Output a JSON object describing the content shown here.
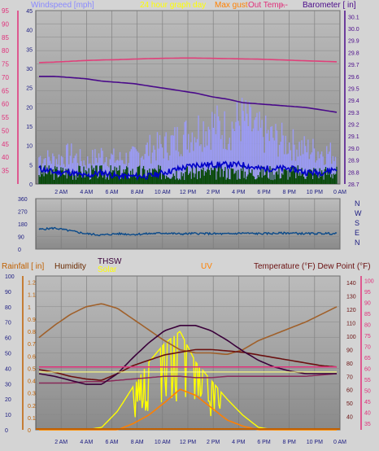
{
  "colors": {
    "panel_bg_top": "#b8b8b8",
    "panel_bg_bottom": "#8e8e8e",
    "frame_bg": "#d4d4d4",
    "windspeed": "#7b7bf0",
    "gust": "#9c9cff",
    "avg_wind": "#0000c8",
    "dark_green": "#0a4a0a",
    "barometer": "#4a0a8a",
    "outside_temp": "#e0407a",
    "wind_dir": "#0a4a8a",
    "humidity": "#a0602a",
    "temperature": "#6a1010",
    "dew_point": "#8a2a5a",
    "thsw": "#3a003a",
    "solar": "#ffff00",
    "uv": "#ff8000",
    "rain": "#c06000",
    "inside_temp": "#e0307a",
    "pink_axis": "#e0307a",
    "left_axis": "#c06000"
  },
  "labels": {
    "windspeed": "Windspeed [mph]",
    "title": "24 hour graph day",
    "maxgust_label": "Max gust",
    "outside_temp": "Out Temp.",
    "dashes": "---",
    "barometer": "Barometer [ in]",
    "rainfall": "Rainfall [ in]",
    "humidity": "Humidity",
    "thsw": "THSW",
    "solar": "Solar",
    "uv": "UV",
    "temperature": "Temperature (°F) Dew Point (°F)"
  },
  "chart_data": [
    {
      "type": "line",
      "name": "wind-barometer",
      "x_ticks": [
        "2 AM",
        "4 AM",
        "6 AM",
        "8 AM",
        "10 AM",
        "12 PM",
        "2 PM",
        "4 PM",
        "6 PM",
        "8 PM",
        "10 PM",
        "0 AM"
      ],
      "left_axis": {
        "label": "Windspeed [mph]",
        "ticks": [
          35,
          40,
          45,
          50,
          55,
          60,
          65,
          70,
          75,
          80,
          85,
          90,
          95
        ],
        "ylim": [
          30,
          95
        ]
      },
      "left_inner_axis": {
        "ticks": [
          0,
          5,
          10,
          15,
          20,
          25,
          30,
          35,
          40,
          45
        ],
        "ylim": [
          0,
          45
        ]
      },
      "right_axis": {
        "label": "Barometer [ in]",
        "ticks": [
          28.7,
          28.8,
          28.9,
          29.0,
          29.1,
          29.2,
          29.3,
          29.4,
          29.5,
          29.6,
          29.7,
          29.8,
          29.9,
          30.0,
          30.1
        ],
        "ylim": [
          28.7,
          30.15
        ]
      },
      "barometer": [
        29.6,
        29.6,
        29.59,
        29.58,
        29.56,
        29.55,
        29.54,
        29.52,
        29.5,
        29.48,
        29.46,
        29.43,
        29.41,
        29.38,
        29.37,
        29.36,
        29.35,
        29.34,
        29.32,
        29.3
      ],
      "outside_temp": [
        75.5,
        75.7,
        76,
        76.3,
        76.5,
        76.6,
        76.8,
        77,
        77.1,
        77.2,
        77.2,
        77.1,
        77,
        76.9,
        76.8,
        76.6,
        76.4,
        76.2,
        76,
        75.8
      ],
      "avg_wind": [
        4,
        3,
        3,
        2,
        3,
        2,
        2,
        2,
        3,
        4,
        5,
        5,
        5,
        5,
        4,
        4,
        4,
        3,
        3,
        4
      ],
      "gust_peak": [
        10,
        9,
        11,
        8,
        11,
        9,
        10,
        13,
        14,
        17,
        20,
        22,
        20,
        24,
        19,
        17,
        15,
        13,
        12,
        11
      ]
    },
    {
      "type": "line",
      "name": "wind-direction",
      "left_axis": {
        "ticks": [
          0,
          90,
          180,
          270,
          360
        ],
        "ylim": [
          0,
          360
        ]
      },
      "right_labels": [
        "N",
        "W",
        "S",
        "E",
        "N"
      ],
      "values": [
        140,
        150,
        130,
        110,
        100,
        110,
        105,
        110,
        115,
        108,
        112,
        110,
        108,
        114,
        110,
        112,
        115,
        110,
        112,
        110
      ]
    },
    {
      "type": "line",
      "name": "temperature-solar",
      "x_ticks": [
        "2 AM",
        "4 AM",
        "6 AM",
        "8 AM",
        "10 AM",
        "12 PM",
        "2 PM",
        "4 PM",
        "6 PM",
        "8 PM",
        "10 PM",
        "0 AM"
      ],
      "left_axis": {
        "label": "Rainfall [ in]",
        "ticks": [
          0,
          0.1,
          0.2,
          0.3,
          0.4,
          0.5,
          0.6,
          0.7,
          0.8,
          0.9,
          1,
          1.1,
          1.2
        ],
        "ylim": [
          0,
          1.25
        ]
      },
      "humidity_axis": {
        "label": "Humidity",
        "ticks": [
          0,
          10,
          20,
          30,
          40,
          50,
          60,
          70,
          80,
          90,
          100
        ],
        "ylim": [
          0,
          100
        ]
      },
      "right_axis": {
        "label": "Temperature (°F)",
        "ticks": [
          40,
          50,
          60,
          70,
          80,
          90,
          100,
          110,
          120,
          130,
          140
        ],
        "ylim": [
          30,
          145
        ]
      },
      "right_inner_axis": {
        "ticks": [
          35,
          40,
          45,
          50,
          55,
          60,
          65,
          70,
          75,
          80,
          85,
          90,
          95,
          100
        ],
        "ylim": [
          32,
          102
        ]
      },
      "humidity": [
        60,
        68,
        75,
        80,
        82,
        79,
        72,
        65,
        58,
        52,
        50,
        50,
        49,
        52,
        58,
        62,
        66,
        70,
        75,
        80
      ],
      "temperature": [
        75,
        73,
        70,
        68,
        67,
        72,
        78,
        82,
        86,
        88,
        90,
        90,
        89,
        88,
        86,
        84,
        82,
        80,
        78,
        77
      ],
      "dew_point": [
        65,
        65,
        65,
        66,
        66,
        67,
        68,
        69,
        70,
        70,
        69,
        69,
        70,
        70,
        70,
        70,
        70,
        70,
        71,
        72
      ],
      "thsw": [
        72,
        70,
        67,
        64,
        64,
        72,
        84,
        95,
        104,
        108,
        108,
        104,
        97,
        89,
        82,
        77,
        74,
        72,
        72,
        72
      ],
      "solar": [
        0,
        0,
        0,
        0,
        0.02,
        0.15,
        0.35,
        0.55,
        0.7,
        0.8,
        0.55,
        0.4,
        0.25,
        0.12,
        0.02,
        0,
        0,
        0,
        0,
        0
      ],
      "uv": [
        0,
        0,
        0,
        0,
        0,
        0,
        0.05,
        0.12,
        0.22,
        0.33,
        0.28,
        0.18,
        0.08,
        0.03,
        0,
        0,
        0,
        0,
        0,
        0
      ]
    }
  ]
}
